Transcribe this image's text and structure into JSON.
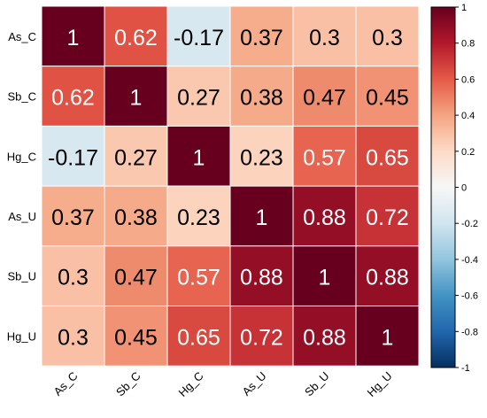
{
  "chart_data": {
    "type": "heatmap",
    "rows": [
      "As_C",
      "Sb_C",
      "Hg_C",
      "As_U",
      "Sb_U",
      "Hg_U"
    ],
    "columns": [
      "As_C",
      "Sb_C",
      "Hg_C",
      "As_U",
      "Sb_U",
      "Hg_U"
    ],
    "values": [
      [
        1,
        0.62,
        -0.17,
        0.37,
        0.3,
        0.3
      ],
      [
        0.62,
        1,
        0.27,
        0.38,
        0.47,
        0.45
      ],
      [
        -0.17,
        0.27,
        1,
        0.23,
        0.57,
        0.65
      ],
      [
        0.37,
        0.38,
        0.23,
        1,
        0.88,
        0.72
      ],
      [
        0.3,
        0.47,
        0.57,
        0.88,
        1,
        0.88
      ],
      [
        0.3,
        0.45,
        0.65,
        0.72,
        0.88,
        1
      ]
    ],
    "value_labels": [
      [
        "1",
        "0.62",
        "-0.17",
        "0.37",
        "0.3",
        "0.3"
      ],
      [
        "0.62",
        "1",
        "0.27",
        "0.38",
        "0.47",
        "0.45"
      ],
      [
        "-0.17",
        "0.27",
        "1",
        "0.23",
        "0.57",
        "0.65"
      ],
      [
        "0.37",
        "0.38",
        "0.23",
        "1",
        "0.88",
        "0.72"
      ],
      [
        "0.3",
        "0.47",
        "0.57",
        "0.88",
        "1",
        "0.88"
      ],
      [
        "0.3",
        "0.45",
        "0.65",
        "0.72",
        "0.88",
        "1"
      ]
    ],
    "colorbar": {
      "range": [
        -1,
        1
      ],
      "ticks": [
        1,
        0.8,
        0.6,
        0.4,
        0.2,
        0,
        -0.2,
        -0.4,
        -0.6,
        -0.8,
        -1
      ],
      "tick_labels": [
        "1",
        "0.8",
        "0.6",
        "0.4",
        "0.2",
        "0",
        "-0.2",
        "-0.4",
        "-0.6",
        "-0.8",
        "-1"
      ],
      "colormap": "RdBu",
      "placement": "right"
    },
    "title": "",
    "xlabel": "",
    "ylabel": "",
    "grid": false
  },
  "colors": {
    "high": "#67001f",
    "mid": "#f7f7f7",
    "low": "#053061",
    "text_dark": "#000000",
    "text_light": "#ffffff"
  }
}
